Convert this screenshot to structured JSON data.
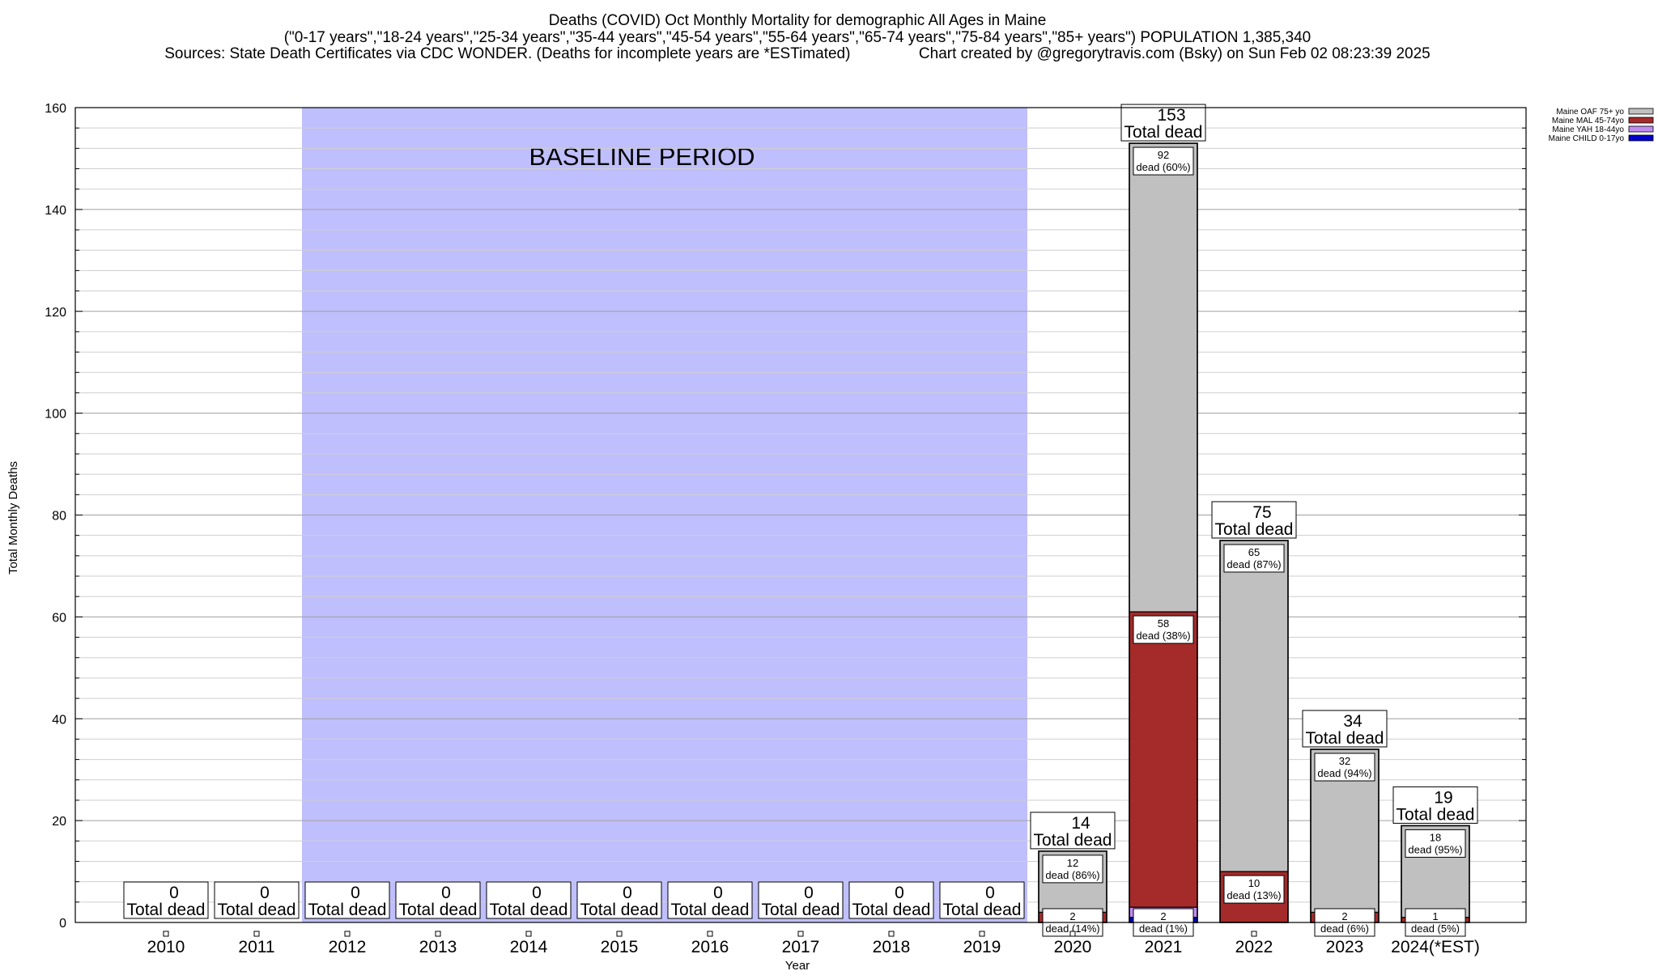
{
  "chart_data": {
    "type": "bar",
    "title_lines": [
      "Deaths (COVID) Oct Monthly Mortality for demographic All Ages in Maine",
      "(\"0-17 years\",\"18-24 years\",\"25-34 years\",\"35-44 years\",\"45-54 years\",\"55-64 years\",\"65-74 years\",\"75-84 years\",\"85+ years\") POPULATION 1,385,340",
      "Sources: State Death Certificates via CDC WONDER. (Deaths for incomplete years are *ESTimated)                Chart created by @gregorytravis.com (Bsky) on Sun Feb 02 08:23:39 2025"
    ],
    "xlabel": "Year",
    "ylabel": "Total Monthly Deaths",
    "ylim": [
      0,
      160
    ],
    "y_ticks": [
      0,
      20,
      40,
      60,
      80,
      100,
      120,
      140,
      160
    ],
    "baseline_label": "BASELINE PERIOD",
    "baseline_range": [
      "2012",
      "2019"
    ],
    "baseline_color": "#bfbffd",
    "total_word": "Total dead",
    "dead_word": "dead",
    "categories": [
      "2010",
      "2011",
      "2012",
      "2013",
      "2014",
      "2015",
      "2016",
      "2017",
      "2018",
      "2019",
      "2020",
      "2021",
      "2022",
      "2023",
      "2024(*EST)"
    ],
    "series": [
      {
        "name": "Maine CHILD 0-17yo",
        "color": "#0000cc",
        "values": [
          0,
          0,
          0,
          0,
          0,
          0,
          0,
          0,
          0,
          0,
          0,
          1,
          0,
          0,
          0
        ]
      },
      {
        "name": "Maine YAH 18-44yo",
        "color": "#c08cf0",
        "values": [
          0,
          0,
          0,
          0,
          0,
          0,
          0,
          0,
          0,
          0,
          0,
          2,
          0,
          0,
          0
        ]
      },
      {
        "name": "Maine MAL 45-74yo",
        "color": "#a52a2a",
        "values": [
          0,
          0,
          0,
          0,
          0,
          0,
          0,
          0,
          0,
          0,
          2,
          58,
          10,
          2,
          1
        ]
      },
      {
        "name": "Maine OAF 75+ yo",
        "color": "#c0c0c0",
        "values": [
          0,
          0,
          0,
          0,
          0,
          0,
          0,
          0,
          0,
          0,
          12,
          92,
          65,
          32,
          18
        ]
      }
    ],
    "totals": [
      0,
      0,
      0,
      0,
      0,
      0,
      0,
      0,
      0,
      0,
      14,
      153,
      75,
      34,
      19
    ],
    "segment_labels": [
      {
        "category": "2020",
        "value": "12",
        "pct": "86%"
      },
      {
        "category": "2020",
        "value": "2",
        "pct": "14%"
      },
      {
        "category": "2021",
        "value": "92",
        "pct": "60%"
      },
      {
        "category": "2021",
        "value": "58",
        "pct": "38%"
      },
      {
        "category": "2021",
        "value": "2",
        "pct": "1%"
      },
      {
        "category": "2022",
        "value": "65",
        "pct": "87%"
      },
      {
        "category": "2022",
        "value": "10",
        "pct": "13%"
      },
      {
        "category": "2023",
        "value": "32",
        "pct": "94%"
      },
      {
        "category": "2023",
        "value": "2",
        "pct": "6%"
      },
      {
        "category": "2024(*EST)",
        "value": "18",
        "pct": "95%"
      },
      {
        "category": "2024(*EST)",
        "value": "1",
        "pct": "5%"
      }
    ],
    "legend": [
      {
        "name": "Maine OAF 75+ yo",
        "color": "#c0c0c0"
      },
      {
        "name": "Maine MAL 45-74yo",
        "color": "#a52a2a"
      },
      {
        "name": "Maine YAH 18-44yo",
        "color": "#c08cf0"
      },
      {
        "name": "Maine CHILD 0-17yo",
        "color": "#0000cc"
      }
    ],
    "legend_position": "top-right",
    "grid": true
  }
}
